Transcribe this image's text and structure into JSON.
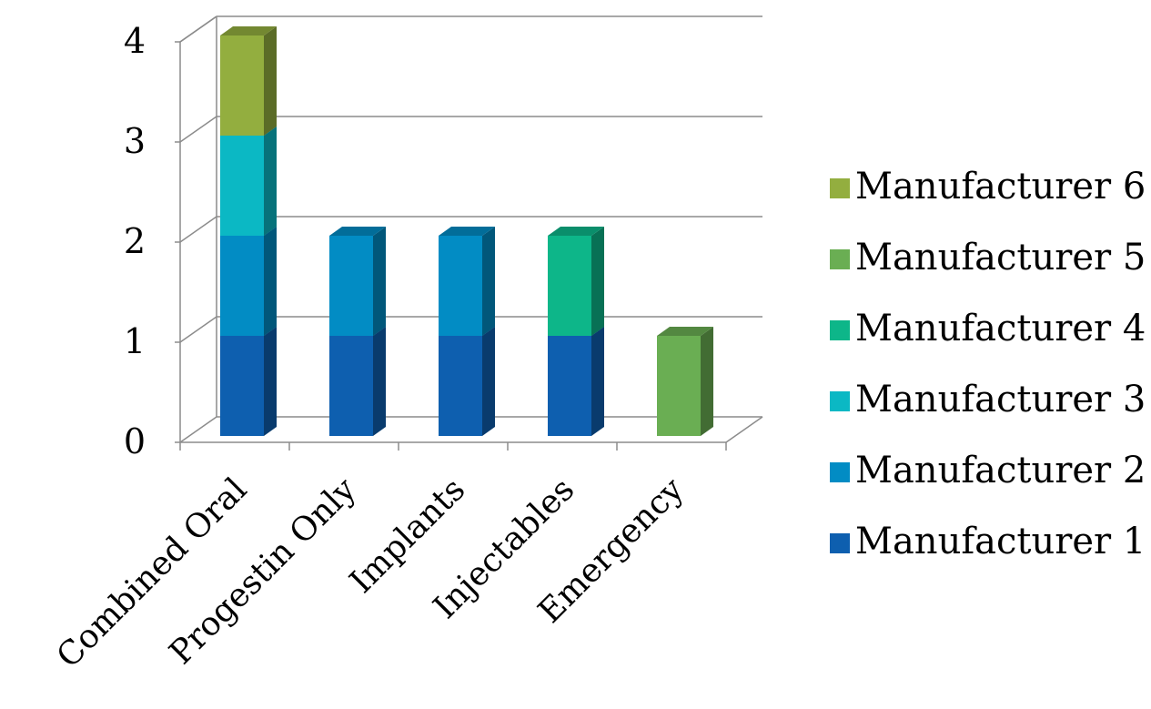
{
  "chart_data": {
    "type": "bar",
    "stacked": true,
    "three_d": true,
    "title": "",
    "xlabel": "",
    "ylabel": "",
    "categories": [
      "Combined Oral",
      "Progestin Only",
      "Implants",
      "Injectables",
      "Emergency"
    ],
    "yticks": [
      "0",
      "1",
      "2",
      "3",
      "4"
    ],
    "ylim": [
      0,
      4
    ],
    "grid": true,
    "legend_position": "right",
    "series": [
      {
        "name": "Manufacturer 1",
        "values": [
          1,
          1,
          1,
          1,
          0
        ],
        "color": "#0E5FAF"
      },
      {
        "name": "Manufacturer 2",
        "values": [
          1,
          1,
          1,
          0,
          0
        ],
        "color": "#028CC4"
      },
      {
        "name": "Manufacturer 3",
        "values": [
          1,
          0,
          0,
          0,
          0
        ],
        "color": "#0BB8C4"
      },
      {
        "name": "Manufacturer 4",
        "values": [
          0,
          0,
          0,
          1,
          0
        ],
        "color": "#0DB689"
      },
      {
        "name": "Manufacturer 5",
        "values": [
          0,
          0,
          0,
          0,
          1
        ],
        "color": "#6AAE53"
      },
      {
        "name": "Manufacturer 6",
        "values": [
          1,
          0,
          0,
          0,
          0
        ],
        "color": "#93AE3F"
      }
    ]
  }
}
